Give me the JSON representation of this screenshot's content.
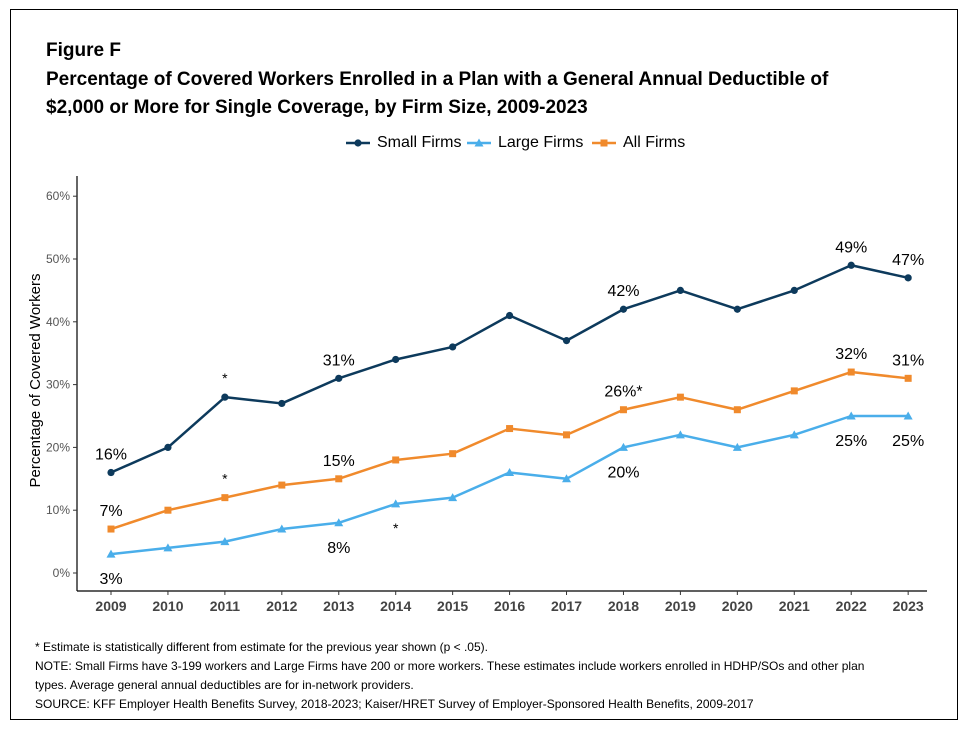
{
  "figure_label": "Figure F",
  "title_lines": [
    "Percentage of Covered Workers Enrolled in a Plan with a General Annual Deductible of",
    "$2,000 or More for Single Coverage, by Firm Size, 2009-2023"
  ],
  "notes": [
    "* Estimate is statistically different from estimate for the previous year shown (p < .05).",
    "NOTE: Small Firms have 3-199 workers and Large Firms have 200 or more workers. These estimates include workers enrolled in HDHP/SOs and other plan",
    "types. Average general annual deductibles are for in-network providers.",
    "SOURCE: KFF Employer Health Benefits Survey, 2018-2023; Kaiser/HRET Survey of Employer-Sponsored Health Benefits, 2009-2017"
  ],
  "chart_data": {
    "type": "line",
    "title": "Percentage of Covered Workers Enrolled in a Plan with a General Annual Deductible of $2,000 or More for Single Coverage, by Firm Size, 2009-2023",
    "xlabel": "",
    "ylabel": "Percentage of Covered Workers",
    "x": [
      "2009",
      "2010",
      "2011",
      "2012",
      "2013",
      "2014",
      "2015",
      "2016",
      "2017",
      "2018",
      "2019",
      "2020",
      "2021",
      "2022",
      "2023"
    ],
    "ylim": [
      0,
      60
    ],
    "yticks": [
      0,
      10,
      20,
      30,
      40,
      50,
      60
    ],
    "ytick_labels": [
      "0%",
      "10%",
      "20%",
      "30%",
      "40%",
      "50%",
      "60%"
    ],
    "grid": false,
    "legend_position": "top",
    "series": [
      {
        "name": "Small Firms",
        "color": "#0d3a5c",
        "marker": "circle",
        "values": [
          16,
          20,
          28,
          27,
          31,
          34,
          36,
          41,
          37,
          42,
          45,
          42,
          45,
          49,
          47
        ],
        "labels": [
          {
            "index": 0,
            "text": "16%",
            "pos": "above"
          },
          {
            "index": 4,
            "text": "31%",
            "pos": "above"
          },
          {
            "index": 9,
            "text": "42%",
            "pos": "above"
          },
          {
            "index": 13,
            "text": "49%",
            "pos": "above"
          },
          {
            "index": 14,
            "text": "47%",
            "pos": "above"
          },
          {
            "index": 2,
            "text": "*",
            "pos": "above"
          }
        ]
      },
      {
        "name": "Large Firms",
        "color": "#4aaeea",
        "marker": "triangle",
        "values": [
          3,
          4,
          5,
          7,
          8,
          11,
          12,
          16,
          15,
          20,
          22,
          20,
          22,
          25,
          25
        ],
        "labels": [
          {
            "index": 0,
            "text": "3%",
            "pos": "below"
          },
          {
            "index": 4,
            "text": "8%",
            "pos": "below"
          },
          {
            "index": 9,
            "text": "20%",
            "pos": "below"
          },
          {
            "index": 13,
            "text": "25%",
            "pos": "below"
          },
          {
            "index": 14,
            "text": "25%",
            "pos": "below"
          },
          {
            "index": 5,
            "text": "*",
            "pos": "below"
          }
        ]
      },
      {
        "name": "All Firms",
        "color": "#f08a2c",
        "marker": "square",
        "values": [
          7,
          10,
          12,
          14,
          15,
          18,
          19,
          23,
          22,
          26,
          28,
          26,
          29,
          32,
          31
        ],
        "labels": [
          {
            "index": 0,
            "text": "7%",
            "pos": "above"
          },
          {
            "index": 4,
            "text": "15%",
            "pos": "above"
          },
          {
            "index": 9,
            "text": "26%*",
            "pos": "above"
          },
          {
            "index": 13,
            "text": "32%",
            "pos": "above"
          },
          {
            "index": 14,
            "text": "31%",
            "pos": "above"
          },
          {
            "index": 2,
            "text": "*",
            "pos": "above"
          }
        ]
      }
    ]
  }
}
